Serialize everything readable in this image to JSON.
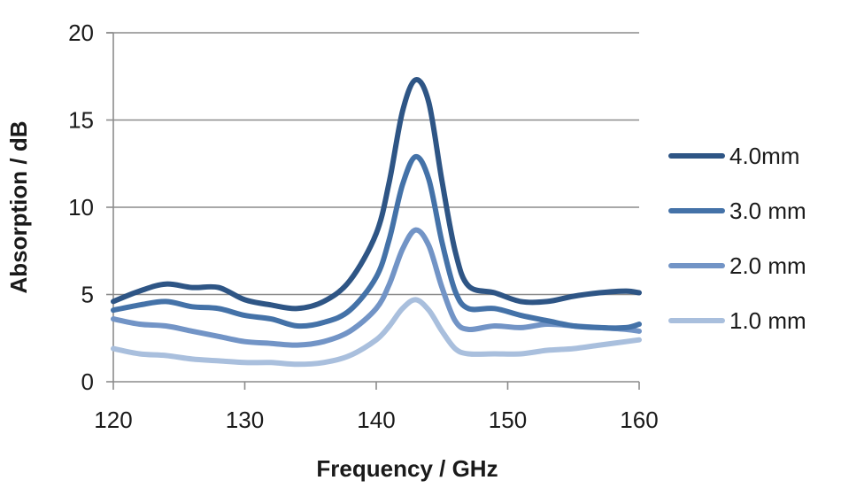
{
  "chart_data": {
    "type": "line",
    "title": "",
    "xlabel": "Frequency / GHz",
    "ylabel": "Absorption / dB",
    "xlim": [
      120,
      160
    ],
    "ylim": [
      0,
      20
    ],
    "xticks": [
      120,
      130,
      140,
      150,
      160
    ],
    "yticks": [
      0,
      5,
      10,
      15,
      20
    ],
    "grid": "horizontal",
    "legend_position": "right",
    "series": [
      {
        "name": "4.0mm",
        "color": "#2e5585",
        "points": [
          [
            120,
            4.6
          ],
          [
            122,
            5.2
          ],
          [
            124,
            5.6
          ],
          [
            126,
            5.4
          ],
          [
            128,
            5.4
          ],
          [
            130,
            4.7
          ],
          [
            132,
            4.4
          ],
          [
            134,
            4.2
          ],
          [
            136,
            4.6
          ],
          [
            138,
            5.8
          ],
          [
            140,
            8.5
          ],
          [
            141,
            11.5
          ],
          [
            142,
            15.5
          ],
          [
            143,
            17.3
          ],
          [
            144,
            16.0
          ],
          [
            145,
            11.5
          ],
          [
            146,
            7.5
          ],
          [
            147,
            5.5
          ],
          [
            149,
            5.1
          ],
          [
            151,
            4.6
          ],
          [
            153,
            4.6
          ],
          [
            155,
            4.9
          ],
          [
            157,
            5.1
          ],
          [
            159,
            5.2
          ],
          [
            160,
            5.1
          ]
        ]
      },
      {
        "name": "3.0 mm",
        "color": "#4472a8",
        "points": [
          [
            120,
            4.1
          ],
          [
            122,
            4.4
          ],
          [
            124,
            4.6
          ],
          [
            126,
            4.3
          ],
          [
            128,
            4.2
          ],
          [
            130,
            3.8
          ],
          [
            132,
            3.6
          ],
          [
            134,
            3.2
          ],
          [
            136,
            3.4
          ],
          [
            138,
            4.1
          ],
          [
            140,
            6.0
          ],
          [
            141,
            8.2
          ],
          [
            142,
            11.3
          ],
          [
            143,
            12.9
          ],
          [
            144,
            11.6
          ],
          [
            145,
            8.0
          ],
          [
            146,
            5.2
          ],
          [
            147,
            4.2
          ],
          [
            149,
            4.2
          ],
          [
            151,
            3.8
          ],
          [
            153,
            3.5
          ],
          [
            155,
            3.2
          ],
          [
            157,
            3.1
          ],
          [
            159,
            3.1
          ],
          [
            160,
            3.3
          ]
        ]
      },
      {
        "name": "2.0 mm",
        "color": "#7294c6",
        "points": [
          [
            120,
            3.6
          ],
          [
            122,
            3.3
          ],
          [
            124,
            3.2
          ],
          [
            126,
            2.9
          ],
          [
            128,
            2.6
          ],
          [
            130,
            2.3
          ],
          [
            132,
            2.2
          ],
          [
            134,
            2.1
          ],
          [
            136,
            2.3
          ],
          [
            138,
            2.9
          ],
          [
            140,
            4.2
          ],
          [
            141,
            5.6
          ],
          [
            142,
            7.6
          ],
          [
            143,
            8.7
          ],
          [
            144,
            7.8
          ],
          [
            145,
            5.4
          ],
          [
            146,
            3.5
          ],
          [
            147,
            3.0
          ],
          [
            149,
            3.2
          ],
          [
            151,
            3.1
          ],
          [
            153,
            3.3
          ],
          [
            155,
            3.2
          ],
          [
            157,
            3.1
          ],
          [
            159,
            3.0
          ],
          [
            160,
            2.9
          ]
        ]
      },
      {
        "name": "1.0 mm",
        "color": "#a9bfdd",
        "points": [
          [
            120,
            1.9
          ],
          [
            122,
            1.6
          ],
          [
            124,
            1.5
          ],
          [
            126,
            1.3
          ],
          [
            128,
            1.2
          ],
          [
            130,
            1.1
          ],
          [
            132,
            1.1
          ],
          [
            134,
            1.0
          ],
          [
            136,
            1.1
          ],
          [
            138,
            1.5
          ],
          [
            140,
            2.4
          ],
          [
            141,
            3.2
          ],
          [
            142,
            4.2
          ],
          [
            143,
            4.7
          ],
          [
            144,
            4.1
          ],
          [
            145,
            2.9
          ],
          [
            146,
            1.9
          ],
          [
            147,
            1.6
          ],
          [
            149,
            1.6
          ],
          [
            151,
            1.6
          ],
          [
            153,
            1.8
          ],
          [
            155,
            1.9
          ],
          [
            157,
            2.1
          ],
          [
            159,
            2.3
          ],
          [
            160,
            2.4
          ]
        ]
      }
    ]
  }
}
